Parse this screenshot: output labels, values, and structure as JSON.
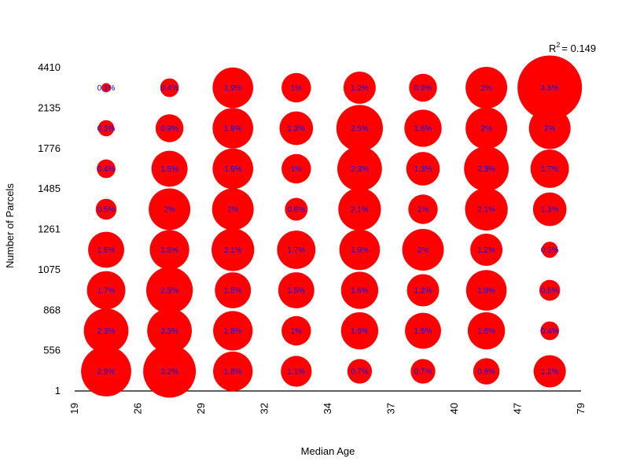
{
  "chart_data": {
    "type": "bubble-grid",
    "title": "",
    "xlabel": "Median Age",
    "ylabel": "Number of Parcels",
    "x_ticks": [
      "19",
      "26",
      "29",
      "32",
      "34",
      "37",
      "40",
      "47",
      "79"
    ],
    "y_ticks": [
      "1",
      "556",
      "868",
      "1075",
      "1261",
      "1485",
      "1776",
      "2135",
      "4410"
    ],
    "r2_label": "R",
    "r2_sup": "2",
    "r2_value": "= 0.149",
    "bubble_color": "#ff0000",
    "label_color": "#0000ff",
    "grid": false,
    "cells": [
      {
        "col": 0,
        "row": 0,
        "value": 2.9,
        "label": "2.9%"
      },
      {
        "col": 1,
        "row": 0,
        "value": 3.2,
        "label": "3.2%"
      },
      {
        "col": 2,
        "row": 0,
        "value": 1.8,
        "label": "1.8%"
      },
      {
        "col": 3,
        "row": 0,
        "value": 1.1,
        "label": "1.1%"
      },
      {
        "col": 4,
        "row": 0,
        "value": 0.7,
        "label": "0.7%"
      },
      {
        "col": 5,
        "row": 0,
        "value": 0.7,
        "label": "0.7%"
      },
      {
        "col": 6,
        "row": 0,
        "value": 0.8,
        "label": "0.8%"
      },
      {
        "col": 7,
        "row": 0,
        "value": 1.2,
        "label": "1.2%"
      },
      {
        "col": 0,
        "row": 1,
        "value": 2.3,
        "label": "2.3%"
      },
      {
        "col": 1,
        "row": 1,
        "value": 2.3,
        "label": "2.3%"
      },
      {
        "col": 2,
        "row": 1,
        "value": 1.8,
        "label": "1.8%"
      },
      {
        "col": 3,
        "row": 1,
        "value": 1.0,
        "label": "1%"
      },
      {
        "col": 4,
        "row": 1,
        "value": 1.6,
        "label": "1.6%"
      },
      {
        "col": 5,
        "row": 1,
        "value": 1.5,
        "label": "1.5%"
      },
      {
        "col": 6,
        "row": 1,
        "value": 1.6,
        "label": "1.6%"
      },
      {
        "col": 7,
        "row": 1,
        "value": 0.4,
        "label": "0.4%"
      },
      {
        "col": 0,
        "row": 2,
        "value": 1.7,
        "label": "1.7%"
      },
      {
        "col": 1,
        "row": 2,
        "value": 2.5,
        "label": "2.5%"
      },
      {
        "col": 2,
        "row": 2,
        "value": 1.5,
        "label": "1.5%"
      },
      {
        "col": 3,
        "row": 2,
        "value": 1.5,
        "label": "1.5%"
      },
      {
        "col": 4,
        "row": 2,
        "value": 1.6,
        "label": "1.6%"
      },
      {
        "col": 5,
        "row": 2,
        "value": 1.2,
        "label": "1.2%"
      },
      {
        "col": 6,
        "row": 2,
        "value": 1.9,
        "label": "1.9%"
      },
      {
        "col": 7,
        "row": 2,
        "value": 0.5,
        "label": "0.5%"
      },
      {
        "col": 0,
        "row": 3,
        "value": 1.5,
        "label": "1.5%"
      },
      {
        "col": 1,
        "row": 3,
        "value": 1.8,
        "label": "1.8%"
      },
      {
        "col": 2,
        "row": 3,
        "value": 2.1,
        "label": "2.1%"
      },
      {
        "col": 3,
        "row": 3,
        "value": 1.7,
        "label": "1.7%"
      },
      {
        "col": 4,
        "row": 3,
        "value": 1.9,
        "label": "1.9%"
      },
      {
        "col": 5,
        "row": 3,
        "value": 2.0,
        "label": "2%"
      },
      {
        "col": 6,
        "row": 3,
        "value": 1.2,
        "label": "1.2%"
      },
      {
        "col": 7,
        "row": 3,
        "value": 0.3,
        "label": "0.3%"
      },
      {
        "col": 0,
        "row": 4,
        "value": 0.5,
        "label": "0.5%"
      },
      {
        "col": 1,
        "row": 4,
        "value": 2.0,
        "label": "2%"
      },
      {
        "col": 2,
        "row": 4,
        "value": 2.0,
        "label": "2%"
      },
      {
        "col": 3,
        "row": 4,
        "value": 0.6,
        "label": "0.6%"
      },
      {
        "col": 4,
        "row": 4,
        "value": 2.1,
        "label": "2.1%"
      },
      {
        "col": 5,
        "row": 4,
        "value": 1.0,
        "label": "1%"
      },
      {
        "col": 6,
        "row": 4,
        "value": 2.1,
        "label": "2.1%"
      },
      {
        "col": 7,
        "row": 4,
        "value": 1.3,
        "label": "1.3%"
      },
      {
        "col": 0,
        "row": 5,
        "value": 0.4,
        "label": "0.4%"
      },
      {
        "col": 1,
        "row": 5,
        "value": 1.5,
        "label": "1.5%"
      },
      {
        "col": 2,
        "row": 5,
        "value": 1.9,
        "label": "1.9%"
      },
      {
        "col": 3,
        "row": 5,
        "value": 1.0,
        "label": "1%"
      },
      {
        "col": 4,
        "row": 5,
        "value": 2.3,
        "label": "2.3%"
      },
      {
        "col": 5,
        "row": 5,
        "value": 1.3,
        "label": "1.3%"
      },
      {
        "col": 6,
        "row": 5,
        "value": 2.3,
        "label": "2.3%"
      },
      {
        "col": 7,
        "row": 5,
        "value": 1.7,
        "label": "1.7%"
      },
      {
        "col": 0,
        "row": 6,
        "value": 0.3,
        "label": "0.3%"
      },
      {
        "col": 1,
        "row": 6,
        "value": 0.9,
        "label": "0.9%"
      },
      {
        "col": 2,
        "row": 6,
        "value": 1.9,
        "label": "1.9%"
      },
      {
        "col": 3,
        "row": 6,
        "value": 1.3,
        "label": "1.3%"
      },
      {
        "col": 4,
        "row": 6,
        "value": 2.5,
        "label": "2.5%"
      },
      {
        "col": 5,
        "row": 6,
        "value": 1.6,
        "label": "1.6%"
      },
      {
        "col": 6,
        "row": 6,
        "value": 2.0,
        "label": "2%"
      },
      {
        "col": 7,
        "row": 6,
        "value": 2.0,
        "label": "2%"
      },
      {
        "col": 0,
        "row": 7,
        "value": 0.1,
        "label": "0.1%"
      },
      {
        "col": 1,
        "row": 7,
        "value": 0.4,
        "label": "0.4%"
      },
      {
        "col": 2,
        "row": 7,
        "value": 1.9,
        "label": "1.9%"
      },
      {
        "col": 3,
        "row": 7,
        "value": 1.0,
        "label": "1%"
      },
      {
        "col": 4,
        "row": 7,
        "value": 1.2,
        "label": "1.2%"
      },
      {
        "col": 5,
        "row": 7,
        "value": 0.9,
        "label": "0.9%"
      },
      {
        "col": 6,
        "row": 7,
        "value": 2.0,
        "label": "2%"
      },
      {
        "col": 7,
        "row": 7,
        "value": 4.8,
        "label": "4.8%"
      }
    ]
  }
}
